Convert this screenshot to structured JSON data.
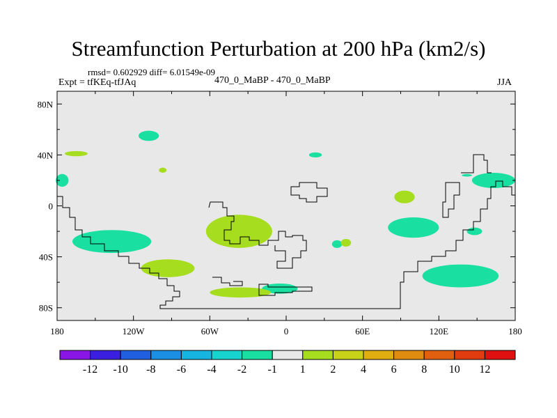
{
  "title": "Streamfunction Perturbation at 200 hPa (km2/s)",
  "stats": "rmsd= 0.602929 diff= 6.01549e-09",
  "expt_label": "Expt = tfKEq-tfJAq",
  "experiment_diff": "470_0_MaBP - 470_0_MaBP",
  "season": "JJA",
  "colors": {
    "background": "#e8e8e8",
    "positive_fill": "#a6dd1f",
    "negative_fill": "#19e0a0",
    "coastline": "#000000"
  },
  "chart_data": {
    "type": "heatmap",
    "projection": "cylindrical equidistant",
    "xlim": [
      -180,
      180
    ],
    "ylim": [
      -90,
      90
    ],
    "x_ticks": [
      {
        "lon": -180,
        "label": "180"
      },
      {
        "lon": -120,
        "label": "120W"
      },
      {
        "lon": -60,
        "label": "60W"
      },
      {
        "lon": 0,
        "label": "0"
      },
      {
        "lon": 60,
        "label": "60E"
      },
      {
        "lon": 120,
        "label": "120E"
      },
      {
        "lon": 180,
        "label": "180"
      }
    ],
    "y_ticks": [
      {
        "lat": 80,
        "label": "80N"
      },
      {
        "lat": 40,
        "label": "40N"
      },
      {
        "lat": 0,
        "label": "0"
      },
      {
        "lat": -40,
        "label": "40S"
      },
      {
        "lat": -80,
        "label": "80S"
      }
    ],
    "colorbar": {
      "labels": [
        "-12",
        "-10",
        "-8",
        "-6",
        "-4",
        "-2",
        "-1",
        "1",
        "2",
        "4",
        "6",
        "8",
        "10",
        "12"
      ],
      "colors": [
        "#8a16e6",
        "#3a1fe0",
        "#1f5fe0",
        "#1a8fe4",
        "#16b4e0",
        "#18d4cf",
        "#19e0a0",
        "#e8e8e8",
        "#a6dd1f",
        "#c8d218",
        "#e0ae10",
        "#e08c10",
        "#e06010",
        "#e03c10",
        "#e01010"
      ]
    },
    "regions": [
      {
        "sign": "negative",
        "range": "-2 to -1",
        "lon_center": -137,
        "lat_center": -28,
        "lon_half_width": 31,
        "lat_half_height": 9
      },
      {
        "sign": "negative",
        "range": "-2 to -1",
        "lon_center": -5,
        "lat_center": -65,
        "lon_half_width": 14,
        "lat_half_height": 4
      },
      {
        "sign": "negative",
        "range": "-2 to -1",
        "lon_center": 100,
        "lat_center": -17,
        "lon_half_width": 20,
        "lat_half_height": 8
      },
      {
        "sign": "negative",
        "range": "-2 to -1",
        "lon_center": 137,
        "lat_center": -55,
        "lon_half_width": 30,
        "lat_half_height": 9
      },
      {
        "sign": "negative",
        "range": "-2 to -1",
        "lon_center": -108,
        "lat_center": 55,
        "lon_half_width": 8,
        "lat_half_height": 4
      },
      {
        "sign": "negative",
        "range": "-2 to -1",
        "lon_center": 163,
        "lat_center": 20,
        "lon_half_width": 17,
        "lat_half_height": 6
      },
      {
        "sign": "negative",
        "range": "-2 to -1",
        "lon_center": -176,
        "lat_center": 20,
        "lon_half_width": 5,
        "lat_half_height": 5
      },
      {
        "sign": "negative",
        "range": "-2 to -1",
        "lon_center": 40,
        "lat_center": -30,
        "lon_half_width": 4,
        "lat_half_height": 3
      },
      {
        "sign": "negative",
        "range": "-2 to -1",
        "lon_center": 148,
        "lat_center": -20,
        "lon_half_width": 6,
        "lat_half_height": 3
      },
      {
        "sign": "negative",
        "range": "-2 to -1",
        "lon_center": 23,
        "lat_center": 40,
        "lon_half_width": 5,
        "lat_half_height": 2
      },
      {
        "sign": "negative",
        "range": "-2 to -1",
        "lon_center": 142,
        "lat_center": 24,
        "lon_half_width": 4,
        "lat_half_height": 1
      },
      {
        "sign": "positive",
        "range": "1 to 2",
        "lon_center": -37,
        "lat_center": -20,
        "lon_half_width": 26,
        "lat_half_height": 13
      },
      {
        "sign": "positive",
        "range": "1 to 2",
        "lon_center": -93,
        "lat_center": -49,
        "lon_half_width": 21,
        "lat_half_height": 7
      },
      {
        "sign": "positive",
        "range": "1 to 2",
        "lon_center": -36,
        "lat_center": -68,
        "lon_half_width": 24,
        "lat_half_height": 4
      },
      {
        "sign": "positive",
        "range": "1 to 2",
        "lon_center": -165,
        "lat_center": 41,
        "lon_half_width": 9,
        "lat_half_height": 2
      },
      {
        "sign": "positive",
        "range": "1 to 2",
        "lon_center": -97,
        "lat_center": 28,
        "lon_half_width": 3,
        "lat_half_height": 2
      },
      {
        "sign": "positive",
        "range": "1 to 2",
        "lon_center": 93,
        "lat_center": 7,
        "lon_half_width": 8,
        "lat_half_height": 5
      },
      {
        "sign": "positive",
        "range": "1 to 2",
        "lon_center": 47,
        "lat_center": -29,
        "lon_half_width": 4,
        "lat_half_height": 3
      }
    ]
  }
}
